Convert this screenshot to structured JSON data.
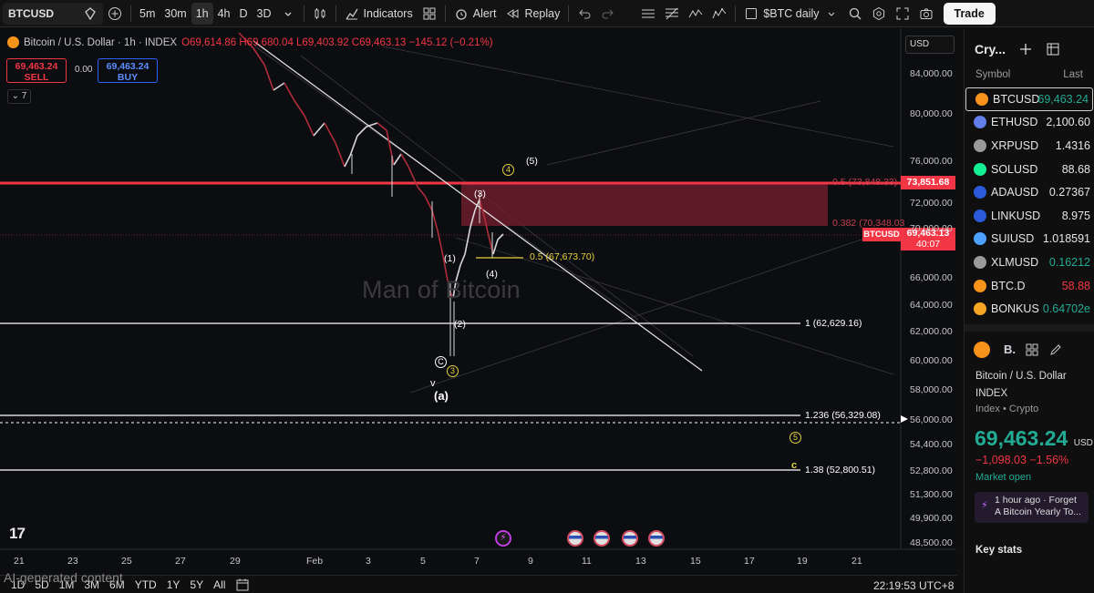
{
  "toolbar": {
    "symbol": "BTCUSD",
    "intervals": [
      "5m",
      "30m",
      "1h",
      "4h",
      "D",
      "3D"
    ],
    "active_interval": "1h",
    "indicators_label": "Indicators",
    "alert_label": "Alert",
    "replay_label": "Replay",
    "layout_name": "$BTC daily",
    "trade_label": "Trade"
  },
  "legend": {
    "title": "Bitcoin / U.S. Dollar · 1h · INDEX",
    "ohlc": "O69,614.86 H69,680.04 L69,403.92 C69,463.13 −145.12 (−0.21%)",
    "sell_price": "69,463.24",
    "sell_label": "SELL",
    "spread": "0.00",
    "buy_price": "69,463.24",
    "buy_label": "BUY",
    "indicator_count": "7",
    "currency": "USD"
  },
  "watermark": "Man of Bitcoin",
  "annotations": {
    "fib_05_upper": "0.5 (73,848.33)",
    "fib_0382": "0.382 (70,348.03",
    "fib_05_lower": "0.5 (67,673.70)",
    "fib_1": "1 (62,629.16)",
    "fib_1236": "1.236 (56,329.08)",
    "fib_138": "1.38 (52,800.51)",
    "wave_1": "(1)",
    "wave_2": "(2)",
    "wave_3": "(3)",
    "wave_4": "(4)",
    "wave_5": "(5)",
    "circ_3": "3",
    "circ_4": "4",
    "circ_5": "5",
    "circ_c": "C",
    "v": "v",
    "a": "(a)",
    "c": "c"
  },
  "y_axis": {
    "ticks": [
      "84,000.00",
      "80,000.00",
      "76,000.00",
      "72,000.00",
      "70,000.00",
      "66,000.00",
      "64,000.00",
      "62,000.00",
      "60,000.00",
      "58,000.00",
      "56,000.00",
      "54,400.00",
      "52,800.00",
      "51,300.00",
      "49,900.00",
      "48,500.00"
    ],
    "resistance_tag": "73,851.68",
    "symbol_tag": "BTCUSD",
    "price_tag": "69,463.13",
    "countdown": "40:07"
  },
  "x_axis": {
    "ticks": [
      "21",
      "23",
      "25",
      "27",
      "29",
      "Feb",
      "3",
      "5",
      "7",
      "9",
      "11",
      "13",
      "15",
      "17",
      "19",
      "21"
    ]
  },
  "bottom": {
    "ranges": [
      "1D",
      "5D",
      "1M",
      "3M",
      "6M",
      "YTD",
      "1Y",
      "5Y",
      "All"
    ],
    "ai_note": "AI-generated content",
    "clock": "22:19:53 UTC+8"
  },
  "watchlist": {
    "title": "Cry...",
    "col_symbol": "Symbol",
    "col_last": "Last",
    "rows": [
      {
        "symbol": "BTCUSD",
        "last": "69,463.24",
        "color": "#f7931a",
        "trend": "green"
      },
      {
        "symbol": "ETHUSD",
        "last": "2,100.60",
        "color": "#627eea",
        "trend": "up"
      },
      {
        "symbol": "XRPUSD",
        "last": "1.4316",
        "color": "#9a9a9a",
        "trend": "up"
      },
      {
        "symbol": "SOLUSD",
        "last": "88.68",
        "color": "#14f195",
        "trend": "up"
      },
      {
        "symbol": "ADAUSD",
        "last": "0.27367",
        "color": "#2a5ada",
        "trend": "up"
      },
      {
        "symbol": "LINKUSD",
        "last": "8.975",
        "color": "#2a5ada",
        "trend": "up"
      },
      {
        "symbol": "SUIUSD",
        "last": "1.018591",
        "color": "#4da2ff",
        "trend": "up"
      },
      {
        "symbol": "XLMUSD",
        "last": "0.16212",
        "color": "#9a9a9a",
        "trend": "green"
      },
      {
        "symbol": "BTC.D",
        "last": "58.88",
        "color": "#f7931a",
        "trend": "down"
      },
      {
        "symbol": "BONKUS",
        "last": "0.64702e",
        "color": "#f5a623",
        "trend": "green"
      }
    ]
  },
  "details": {
    "short_name": "B.",
    "name": "Bitcoin / U.S. Dollar",
    "type": "INDEX",
    "sub": "Index • Crypto",
    "price": "69,463.24",
    "currency": "USD",
    "change": "−1,098.03  −1.56%",
    "status": "Market open",
    "news_time": "1 hour ago · Forget",
    "news_text": "A Bitcoin Yearly To...",
    "key_stats": "Key stats"
  }
}
